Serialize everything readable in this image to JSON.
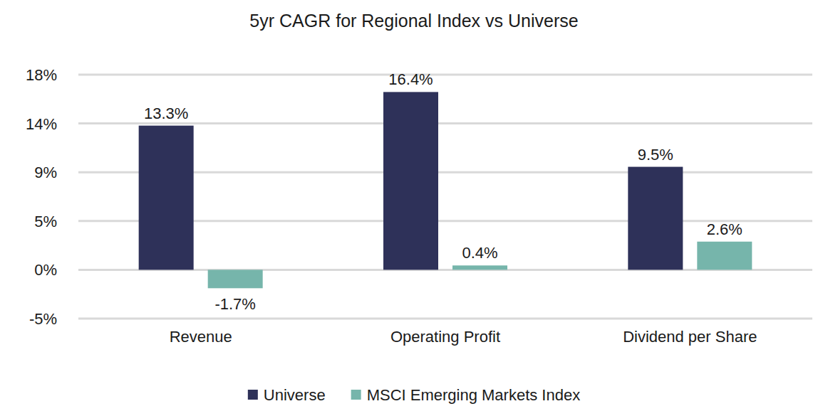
{
  "chart_data": {
    "type": "bar",
    "title": "5yr CAGR for Regional Index vs Universe",
    "categories": [
      "Revenue",
      "Operating Profit",
      "Dividend per Share"
    ],
    "series": [
      {
        "name": "Universe",
        "color": "#2e3159",
        "values": [
          13.3,
          16.4,
          9.5
        ],
        "value_labels": [
          "13.3%",
          "16.4%",
          "9.5%"
        ]
      },
      {
        "name": "MSCI Emerging Markets Index",
        "color": "#76b5ab",
        "values": [
          -1.7,
          0.4,
          2.6
        ],
        "value_labels": [
          "-1.7%",
          "0.4%",
          "2.6%"
        ]
      }
    ],
    "ylim": [
      -4.5,
      18
    ],
    "yticks": [
      {
        "value": -4.5,
        "label": "-5%"
      },
      {
        "value": 0,
        "label": "0%"
      },
      {
        "value": 4.5,
        "label": "5%"
      },
      {
        "value": 9,
        "label": "9%"
      },
      {
        "value": 13.5,
        "label": "14%"
      },
      {
        "value": 18,
        "label": "18%"
      }
    ],
    "grid": true,
    "data_labels": true,
    "legend": "bottom"
  }
}
